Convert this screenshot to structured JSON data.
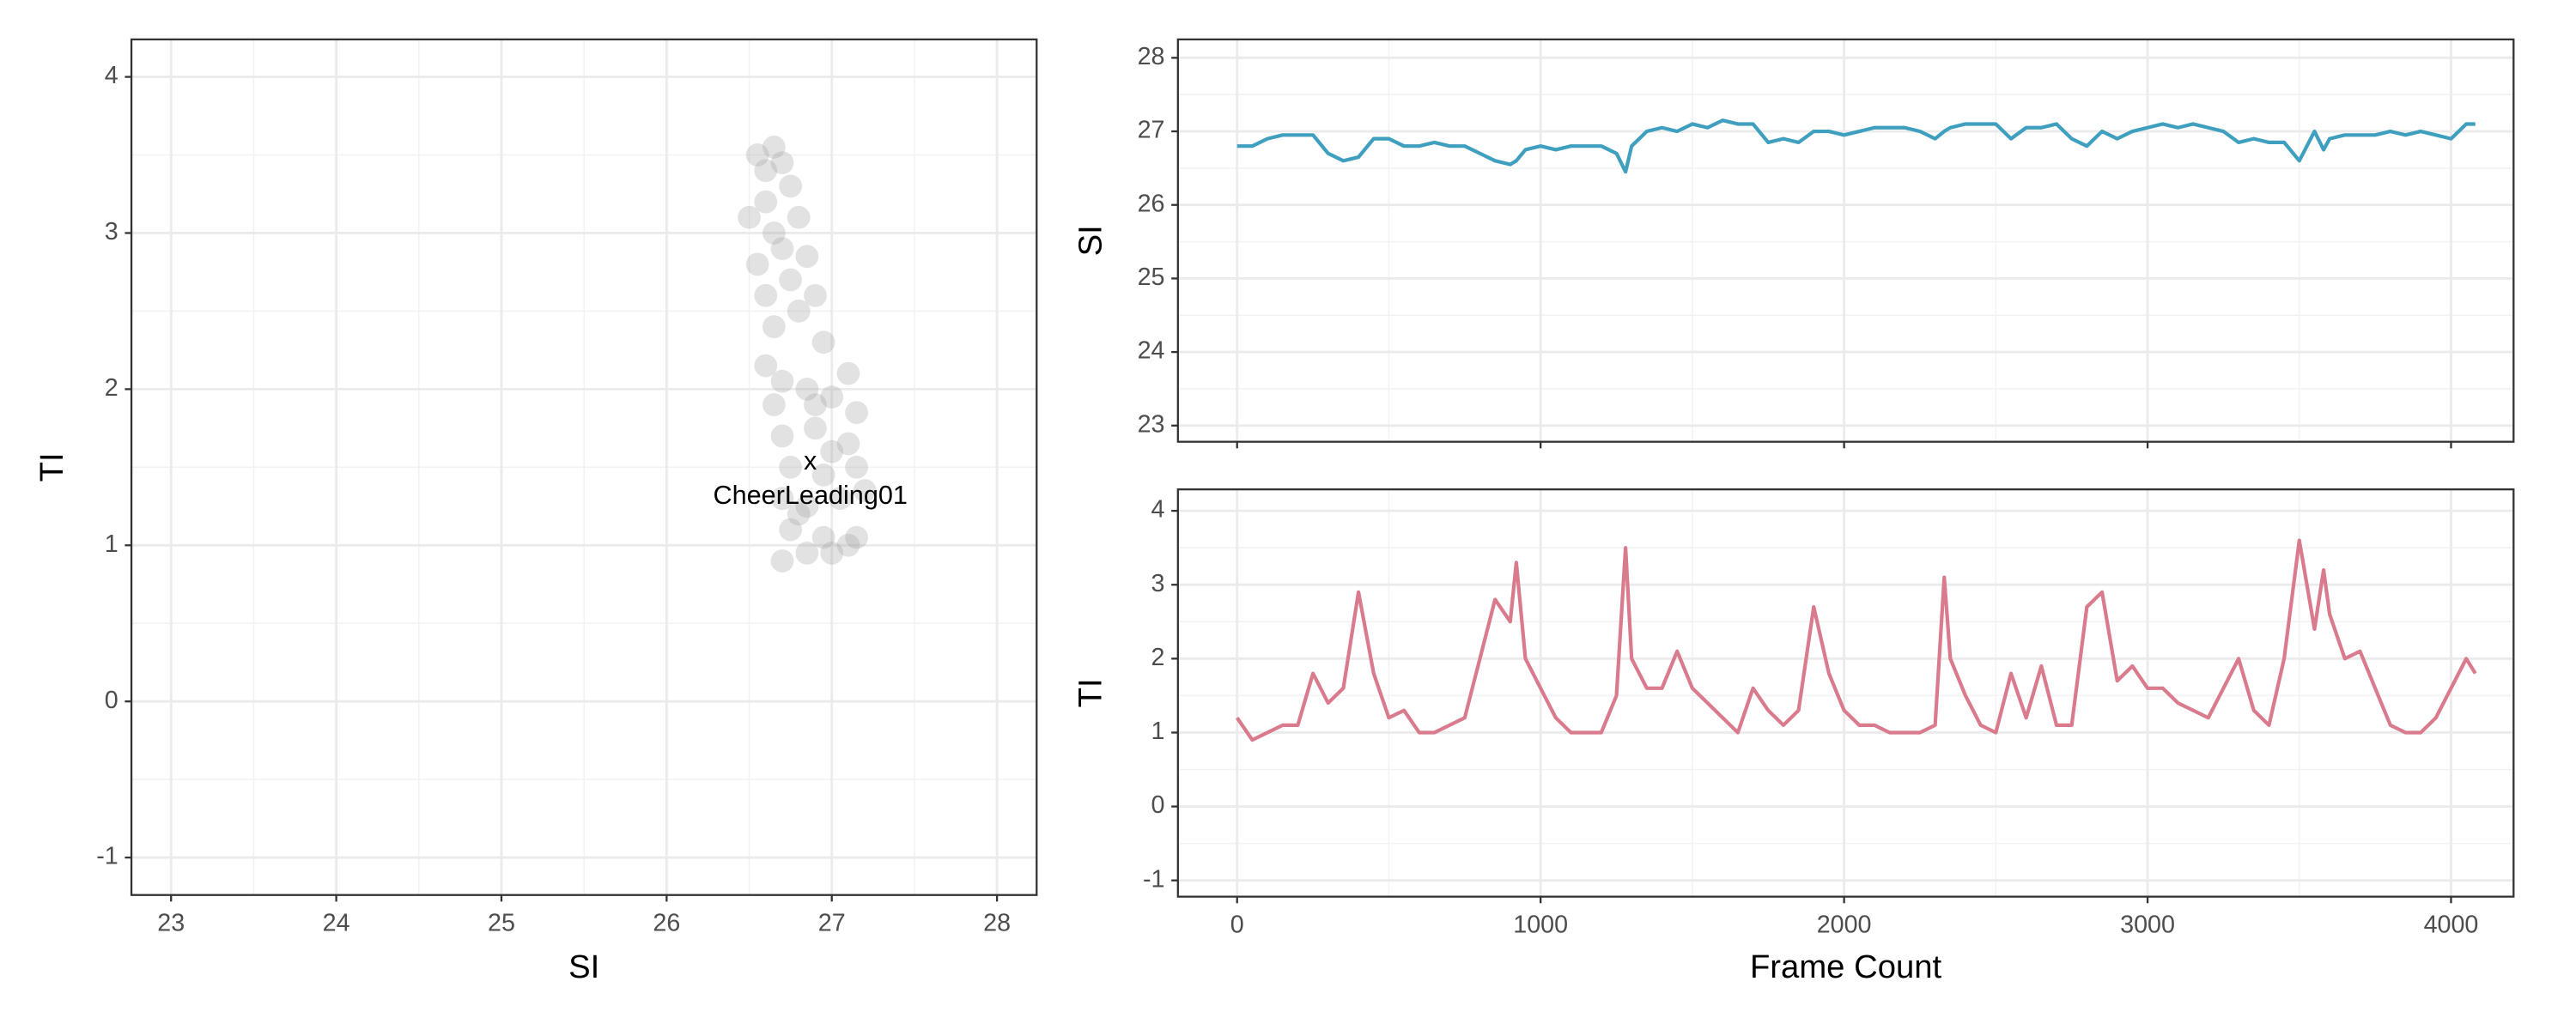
{
  "chart_data": [
    {
      "type": "scatter",
      "xlabel": "SI",
      "ylabel": "TI",
      "xlim": [
        22.76,
        28.24
      ],
      "xticks": [
        23,
        24,
        25,
        26,
        27,
        28
      ],
      "ylim": [
        -1.24,
        4.24
      ],
      "yticks": [
        -1,
        0,
        1,
        2,
        3,
        4
      ],
      "grid": true,
      "minor_grid": true,
      "color": "#9e9e9e",
      "x": [
        26.55,
        26.6,
        26.65,
        26.7,
        26.6,
        26.75,
        26.5,
        26.65,
        26.8,
        26.7,
        26.55,
        26.85,
        26.6,
        26.75,
        26.9,
        26.65,
        26.8,
        26.95,
        26.6,
        26.7,
        27.1,
        26.65,
        26.85,
        27.0,
        27.15,
        26.7,
        26.9,
        27.1,
        26.75,
        26.95,
        27.15,
        26.7,
        26.85,
        27.05,
        27.2,
        26.75,
        26.95,
        27.1,
        26.7,
        26.85,
        27.0,
        27.15,
        26.8,
        27.0,
        26.9
      ],
      "y": [
        3.5,
        3.4,
        3.55,
        3.45,
        3.2,
        3.3,
        3.1,
        3.0,
        3.1,
        2.9,
        2.8,
        2.85,
        2.6,
        2.7,
        2.6,
        2.4,
        2.5,
        2.3,
        2.15,
        2.05,
        2.1,
        1.9,
        2.0,
        1.95,
        1.85,
        1.7,
        1.75,
        1.65,
        1.5,
        1.45,
        1.5,
        1.3,
        1.25,
        1.3,
        1.35,
        1.1,
        1.05,
        1.0,
        0.9,
        0.95,
        0.95,
        1.05,
        1.2,
        1.6,
        1.9
      ],
      "annotations": [
        {
          "x": 26.87,
          "y": 1.52,
          "marker": "x",
          "text": "CheerLeading01"
        }
      ]
    },
    {
      "type": "line",
      "ylabel": "SI",
      "color": "#3f9fbf",
      "xlim": [
        -195,
        4206
      ],
      "xticks": [
        0,
        1000,
        2000,
        3000,
        4000
      ],
      "xtick_labels": false,
      "ylim": [
        22.78,
        28.25
      ],
      "yticks": [
        23,
        24,
        25,
        26,
        27,
        28
      ],
      "grid": true,
      "minor_grid": true,
      "x": [
        0,
        50,
        100,
        150,
        200,
        250,
        300,
        350,
        400,
        450,
        500,
        550,
        600,
        650,
        700,
        750,
        800,
        850,
        900,
        920,
        950,
        1000,
        1050,
        1100,
        1150,
        1200,
        1250,
        1280,
        1300,
        1350,
        1400,
        1450,
        1500,
        1550,
        1600,
        1650,
        1700,
        1750,
        1800,
        1850,
        1900,
        1950,
        2000,
        2050,
        2100,
        2150,
        2200,
        2250,
        2300,
        2330,
        2350,
        2400,
        2450,
        2500,
        2550,
        2600,
        2650,
        2700,
        2750,
        2800,
        2850,
        2900,
        2950,
        3000,
        3050,
        3100,
        3150,
        3200,
        3250,
        3300,
        3350,
        3400,
        3450,
        3500,
        3550,
        3580,
        3600,
        3650,
        3700,
        3750,
        3800,
        3850,
        3900,
        3950,
        4000,
        4050,
        4080
      ],
      "values": [
        26.8,
        26.8,
        26.9,
        26.95,
        26.95,
        26.95,
        26.7,
        26.6,
        26.65,
        26.9,
        26.9,
        26.8,
        26.8,
        26.85,
        26.8,
        26.8,
        26.7,
        26.6,
        26.55,
        26.6,
        26.75,
        26.8,
        26.75,
        26.8,
        26.8,
        26.8,
        26.7,
        26.45,
        26.8,
        27.0,
        27.05,
        27.0,
        27.1,
        27.05,
        27.15,
        27.1,
        27.1,
        26.85,
        26.9,
        26.85,
        27.0,
        27.0,
        26.95,
        27.0,
        27.05,
        27.05,
        27.05,
        27.0,
        26.9,
        27.0,
        27.05,
        27.1,
        27.1,
        27.1,
        26.9,
        27.05,
        27.05,
        27.1,
        26.9,
        26.8,
        27.0,
        26.9,
        27.0,
        27.05,
        27.1,
        27.05,
        27.1,
        27.05,
        27.0,
        26.85,
        26.9,
        26.85,
        26.85,
        26.6,
        27.0,
        26.75,
        26.9,
        26.95,
        26.95,
        26.95,
        27.0,
        26.95,
        27.0,
        26.95,
        26.9,
        27.1,
        27.1
      ]
    },
    {
      "type": "line",
      "xlabel": "Frame Count",
      "ylabel": "TI",
      "color": "#d97a8d",
      "xlim": [
        -195,
        4206
      ],
      "xticks": [
        0,
        1000,
        2000,
        3000,
        4000
      ],
      "ylim": [
        -1.22,
        4.29
      ],
      "yticks": [
        -1,
        0,
        1,
        2,
        3,
        4
      ],
      "grid": true,
      "minor_grid": true,
      "x": [
        0,
        50,
        100,
        150,
        200,
        250,
        300,
        350,
        400,
        450,
        500,
        550,
        600,
        650,
        700,
        750,
        800,
        850,
        900,
        920,
        950,
        1000,
        1050,
        1100,
        1150,
        1200,
        1250,
        1280,
        1300,
        1350,
        1400,
        1450,
        1500,
        1550,
        1600,
        1650,
        1700,
        1750,
        1800,
        1850,
        1900,
        1950,
        2000,
        2050,
        2100,
        2150,
        2200,
        2250,
        2300,
        2330,
        2350,
        2400,
        2450,
        2500,
        2550,
        2600,
        2650,
        2700,
        2750,
        2800,
        2850,
        2900,
        2950,
        3000,
        3050,
        3100,
        3150,
        3200,
        3250,
        3300,
        3350,
        3400,
        3450,
        3500,
        3550,
        3580,
        3600,
        3650,
        3700,
        3750,
        3800,
        3850,
        3900,
        3950,
        4000,
        4050,
        4080
      ],
      "values": [
        1.2,
        0.9,
        1.0,
        1.1,
        1.1,
        1.8,
        1.4,
        1.6,
        2.9,
        1.8,
        1.2,
        1.3,
        1.0,
        1.0,
        1.1,
        1.2,
        2.0,
        2.8,
        2.5,
        3.3,
        2.0,
        1.6,
        1.2,
        1.0,
        1.0,
        1.0,
        1.5,
        3.5,
        2.0,
        1.6,
        1.6,
        2.1,
        1.6,
        1.4,
        1.2,
        1.0,
        1.6,
        1.3,
        1.1,
        1.3,
        2.7,
        1.8,
        1.3,
        1.1,
        1.1,
        1.0,
        1.0,
        1.0,
        1.1,
        3.1,
        2.0,
        1.5,
        1.1,
        1.0,
        1.8,
        1.2,
        1.9,
        1.1,
        1.1,
        2.7,
        2.9,
        1.7,
        1.9,
        1.6,
        1.6,
        1.4,
        1.3,
        1.2,
        1.6,
        2.0,
        1.3,
        1.1,
        2.0,
        3.6,
        2.4,
        3.2,
        2.6,
        2.0,
        2.1,
        1.6,
        1.1,
        1.0,
        1.0,
        1.2,
        1.6,
        2.0,
        1.8
      ]
    }
  ]
}
